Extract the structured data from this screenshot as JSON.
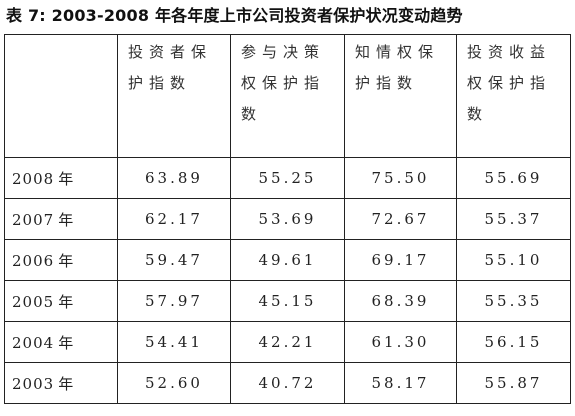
{
  "caption": "表 7: 2003-2008 年各年度上市公司投资者保护状况变动趋势",
  "table": {
    "headers": [
      "",
      "投资者保护指数",
      "参与决策权保护指数",
      "知情权保护指数",
      "投资收益权保护指数"
    ],
    "rows": [
      {
        "year": "2008",
        "unit": "年",
        "values": [
          "63.89",
          "55.25",
          "75.50",
          "55.69"
        ]
      },
      {
        "year": "2007",
        "unit": "年",
        "values": [
          "62.17",
          "53.69",
          "72.67",
          "55.37"
        ]
      },
      {
        "year": "2006",
        "unit": "年",
        "values": [
          "59.47",
          "49.61",
          "69.17",
          "55.10"
        ]
      },
      {
        "year": "2005",
        "unit": "年",
        "values": [
          "57.97",
          "45.15",
          "68.39",
          "55.35"
        ]
      },
      {
        "year": "2004",
        "unit": "年",
        "values": [
          "54.41",
          "42.21",
          "61.30",
          "56.15"
        ]
      },
      {
        "year": "2003",
        "unit": "年",
        "values": [
          "52.60",
          "40.72",
          "58.17",
          "55.87"
        ]
      }
    ]
  }
}
